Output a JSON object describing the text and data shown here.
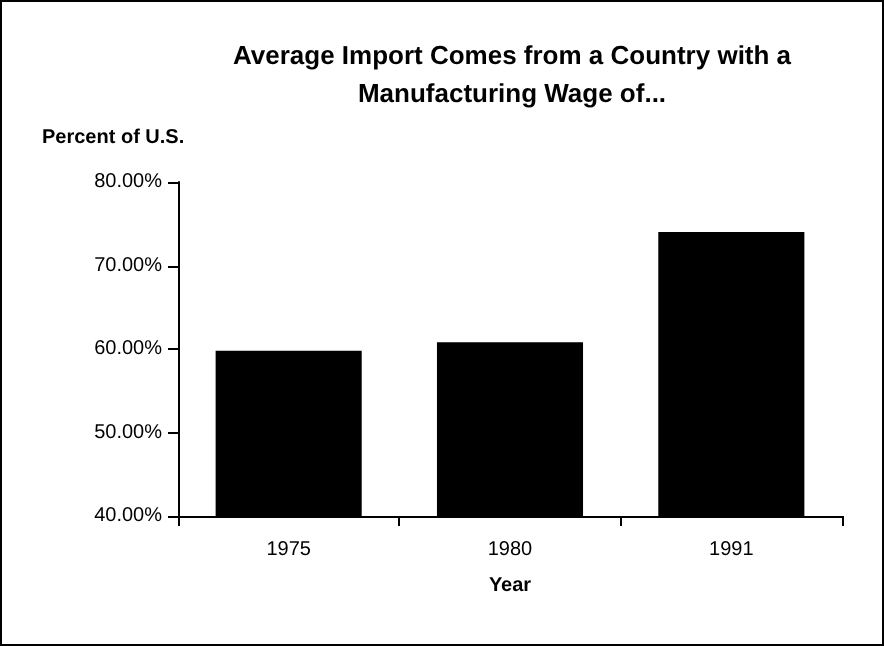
{
  "chart_data": {
    "type": "bar",
    "title": "Average Import Comes from a Country with a\nManufacturing Wage of...",
    "ylabel": "Percent of U.S.",
    "xlabel": "Year",
    "categories": [
      "1975",
      "1980",
      "1991"
    ],
    "values": [
      59.8,
      60.8,
      74.0
    ],
    "color": "#000000",
    "ylim": [
      40,
      80
    ],
    "yticks": [
      {
        "value": 40,
        "label": "40.00%"
      },
      {
        "value": 50,
        "label": "50.00%"
      },
      {
        "value": 60,
        "label": "60.00%"
      },
      {
        "value": 70,
        "label": "70.00%"
      },
      {
        "value": 80,
        "label": "80.00%"
      }
    ],
    "grid": false
  }
}
